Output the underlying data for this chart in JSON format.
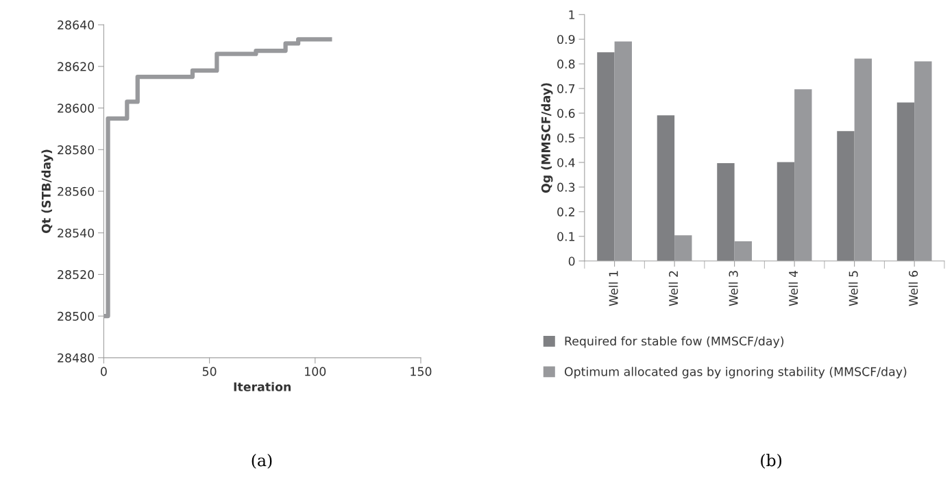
{
  "chart_data": [
    {
      "type": "step",
      "xlabel": "Iteration",
      "ylabel": "Qt (STB/day)",
      "annotations": [
        "(a)"
      ],
      "x": [
        0,
        2,
        11,
        16,
        42,
        53.5,
        72,
        86,
        92,
        107
      ],
      "series": [
        {
          "color": "#98999c",
          "values": [
            28500,
            28595,
            28603,
            28615,
            28618,
            28626,
            28627.5,
            28631,
            28633,
            28633
          ]
        }
      ],
      "xlim": [
        0,
        150
      ],
      "xticks": [
        0,
        50,
        100,
        150
      ],
      "ylim": [
        28480,
        28640
      ],
      "yticks": [
        28480,
        28500,
        28520,
        28540,
        28560,
        28580,
        28600,
        28620,
        28640
      ],
      "grid": false,
      "marker": "none",
      "line_style": "solid"
    },
    {
      "type": "bar",
      "ylabel": "Qg (MMSCF/day)",
      "annotations": [
        "(b)"
      ],
      "categories": [
        "Well 1",
        "Well 2",
        "Well 3",
        "Well 4",
        "Well 5",
        "Well 6"
      ],
      "series": [
        {
          "name": "Required for stable fow (MMSCF/day)",
          "color": "#7f8083",
          "values": [
            0.847,
            0.591,
            0.397,
            0.401,
            0.527,
            0.643
          ]
        },
        {
          "name": "Optimum allocated gas by ignoring stability (MMSCF/day)",
          "color": "#98999c",
          "values": [
            0.891,
            0.104,
            0.08,
            0.697,
            0.821,
            0.81
          ]
        }
      ],
      "ylim": [
        0,
        1
      ],
      "yticks": [
        0,
        0.1,
        0.2,
        0.3,
        0.4,
        0.5,
        0.6,
        0.7,
        0.8,
        0.9,
        1
      ],
      "grid": false,
      "legend": "bottom"
    }
  ]
}
